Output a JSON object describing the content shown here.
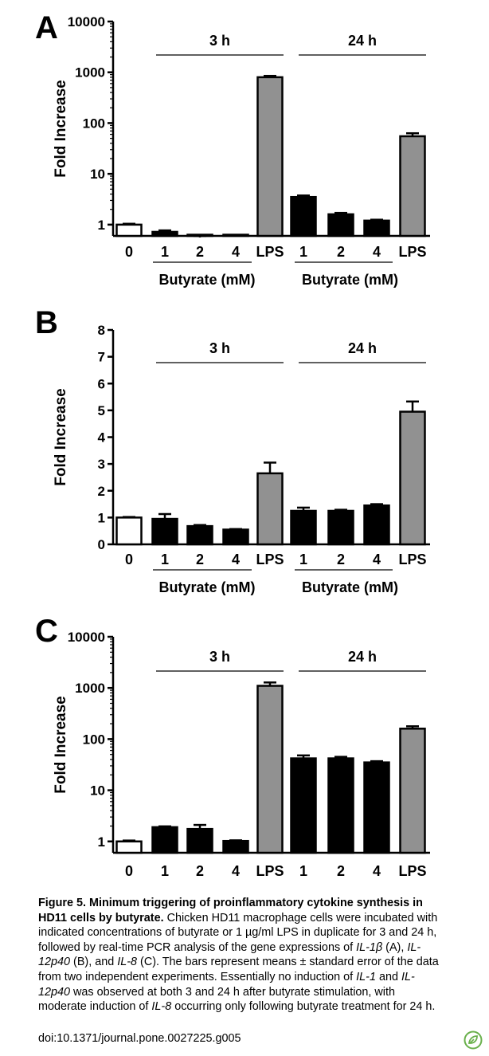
{
  "caption": {
    "figure_label": "Figure 5.",
    "title": "Minimum triggering of proinflammatory cytokine synthesis in HD11 cells by butyrate.",
    "t1": "Chicken HD11 macrophage cells were incubated with indicated concentrations of butyrate or 1 µg/ml LPS in duplicate for 3 and 24 h, followed by real-time PCR analysis of the gene expressions of ",
    "g1": "IL-1β",
    "t2": " (A), ",
    "g2": "IL-12p40",
    "t3": " (B), and ",
    "g3": "IL-8",
    "t4": " (C). The bars represent means ± standard error of the data from two independent experiments. Essentially no induction of ",
    "g4": "IL-1",
    "t5": " and ",
    "g5": "IL-12p40",
    "t6": " was observed at both 3 and 24 h after butyrate stimulation, with moderate induction of ",
    "g6": "IL-8",
    "t7": " occurring only following butyrate treatment for 24 h.",
    "doi": "doi:10.1371/journal.pone.0027225.g005"
  },
  "badge_icon": "plos-leaf-icon",
  "chart_data": [
    {
      "panel": "A",
      "type": "bar",
      "scale": "log",
      "ylabel": "Fold Increase",
      "yticks": [
        "1",
        "10",
        "100",
        "1000",
        "10000"
      ],
      "ylim": [
        0.6,
        10000
      ],
      "categories": [
        "0",
        "1",
        "2",
        "4",
        "LPS",
        "1",
        "2",
        "4",
        "LPS"
      ],
      "values": [
        1.0,
        0.72,
        0.56,
        0.5,
        800,
        3.5,
        1.6,
        1.2,
        55
      ],
      "errors": [
        0.04,
        0.05,
        0.04,
        0.0,
        50,
        0.25,
        0.1,
        0.05,
        8
      ],
      "fills": [
        "#ffffff",
        "#000000",
        "#000000",
        "#000000",
        "#919191",
        "#000000",
        "#000000",
        "#000000",
        "#919191"
      ],
      "group_labels": [
        "3 h",
        "24 h"
      ],
      "treatment_label": "Butyrate (mM)"
    },
    {
      "panel": "B",
      "type": "bar",
      "scale": "linear",
      "ylabel": "Fold Increase",
      "yticks": [
        "0",
        "1",
        "2",
        "3",
        "4",
        "5",
        "6",
        "7",
        "8"
      ],
      "ylim": [
        0,
        8
      ],
      "categories": [
        "0",
        "1",
        "2",
        "4",
        "LPS",
        "1",
        "2",
        "4",
        "LPS"
      ],
      "values": [
        1.0,
        0.95,
        0.68,
        0.55,
        2.65,
        1.25,
        1.25,
        1.45,
        4.95
      ],
      "errors": [
        0.02,
        0.18,
        0.04,
        0.02,
        0.4,
        0.12,
        0.04,
        0.05,
        0.38
      ],
      "fills": [
        "#ffffff",
        "#000000",
        "#000000",
        "#000000",
        "#919191",
        "#000000",
        "#000000",
        "#000000",
        "#919191"
      ],
      "group_labels": [
        "3 h",
        "24 h"
      ],
      "treatment_label": "Butyrate (mM)"
    },
    {
      "panel": "C",
      "type": "bar",
      "scale": "log",
      "ylabel": "Fold Increase",
      "yticks": [
        "1",
        "10",
        "100",
        "1000",
        "10000"
      ],
      "ylim": [
        0.6,
        10000
      ],
      "categories": [
        "0",
        "1",
        "2",
        "4",
        "LPS",
        "1",
        "2",
        "4",
        "LPS"
      ],
      "values": [
        1.0,
        1.9,
        1.75,
        1.02,
        1100,
        42,
        42,
        35,
        160
      ],
      "errors": [
        0.04,
        0.07,
        0.35,
        0.03,
        180,
        6,
        3,
        2,
        18
      ],
      "fills": [
        "#ffffff",
        "#000000",
        "#000000",
        "#000000",
        "#919191",
        "#000000",
        "#000000",
        "#000000",
        "#919191"
      ],
      "group_labels": [
        "3 h",
        "24 h"
      ],
      "treatment_label": ""
    }
  ]
}
